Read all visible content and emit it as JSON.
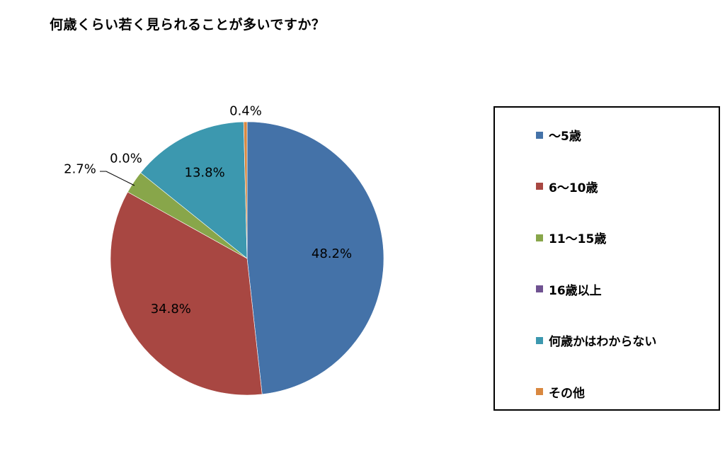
{
  "chart_data": {
    "type": "pie",
    "title": "何歳くらい若く見られることが多いですか？",
    "categories": [
      "〜5歳",
      "6〜10歳",
      "11〜15歳",
      "16歳以上",
      "何歳かはわからない",
      "その他"
    ],
    "values": [
      48.2,
      34.8,
      2.7,
      0.0,
      13.8,
      0.4
    ],
    "data_labels": [
      "48.2%",
      "34.8%",
      "2.7%",
      "0.0%",
      "13.8%",
      "0.4%"
    ],
    "colors": [
      "#4472a8",
      "#a84742",
      "#88a64a",
      "#6f5291",
      "#3c98af",
      "#d98840"
    ],
    "legend": "right",
    "start_angle": "12 o'clock",
    "direction": "clockwise"
  }
}
